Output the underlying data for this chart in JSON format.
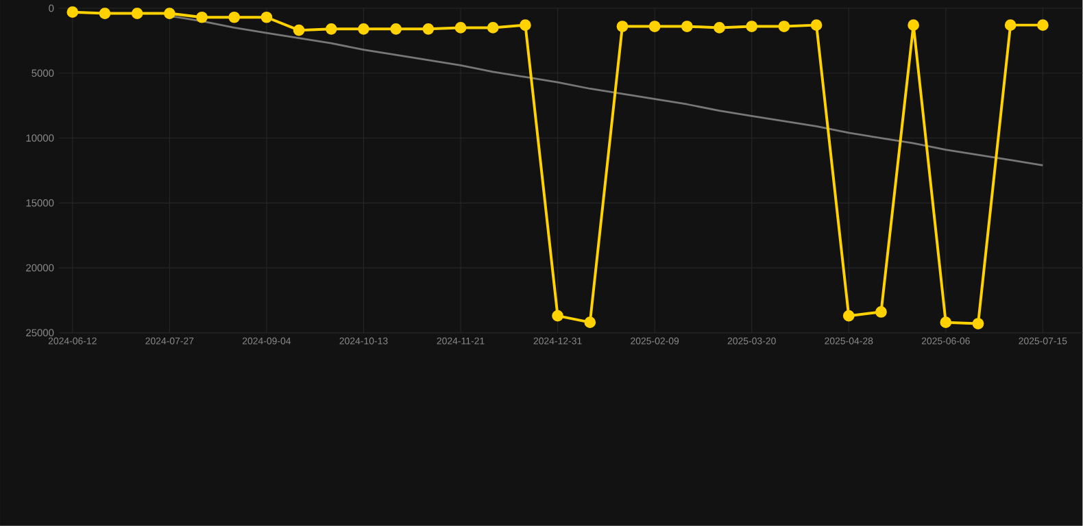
{
  "chart_data": {
    "type": "line",
    "categories": [
      "2024-06-12",
      null,
      null,
      "2024-07-27",
      null,
      null,
      "2024-09-04",
      null,
      null,
      "2024-10-13",
      null,
      null,
      "2024-11-21",
      null,
      null,
      "2024-12-31",
      null,
      null,
      "2025-02-09",
      null,
      null,
      "2025-03-20",
      null,
      null,
      "2025-04-28",
      null,
      null,
      "2025-06-06",
      null,
      null,
      "2025-07-15"
    ],
    "series": [
      {
        "color": "#777777",
        "marker": "none",
        "values": [
          null,
          null,
          null,
          600,
          1000,
          1500,
          1900,
          2300,
          2700,
          3200,
          3600,
          4000,
          4400,
          4900,
          5300,
          5700,
          6200,
          6600,
          7000,
          7400,
          7900,
          8300,
          8700,
          9100,
          9600,
          10000,
          10400,
          10900,
          11300,
          11700,
          12100
        ]
      },
      {
        "color": "#ffd200",
        "marker": "circle",
        "values": [
          300,
          400,
          400,
          400,
          700,
          700,
          700,
          1700,
          1600,
          1600,
          1600,
          1600,
          1500,
          1500,
          1300,
          23700,
          24200,
          1400,
          1400,
          1400,
          1500,
          1400,
          1400,
          1300,
          23700,
          23400,
          1300,
          24200,
          24300,
          1300,
          1300
        ]
      }
    ],
    "ylim": [
      25000,
      0
    ],
    "yticks": [
      0,
      5000,
      10000,
      15000,
      20000,
      25000
    ],
    "grid": true,
    "line_style": "solid"
  }
}
